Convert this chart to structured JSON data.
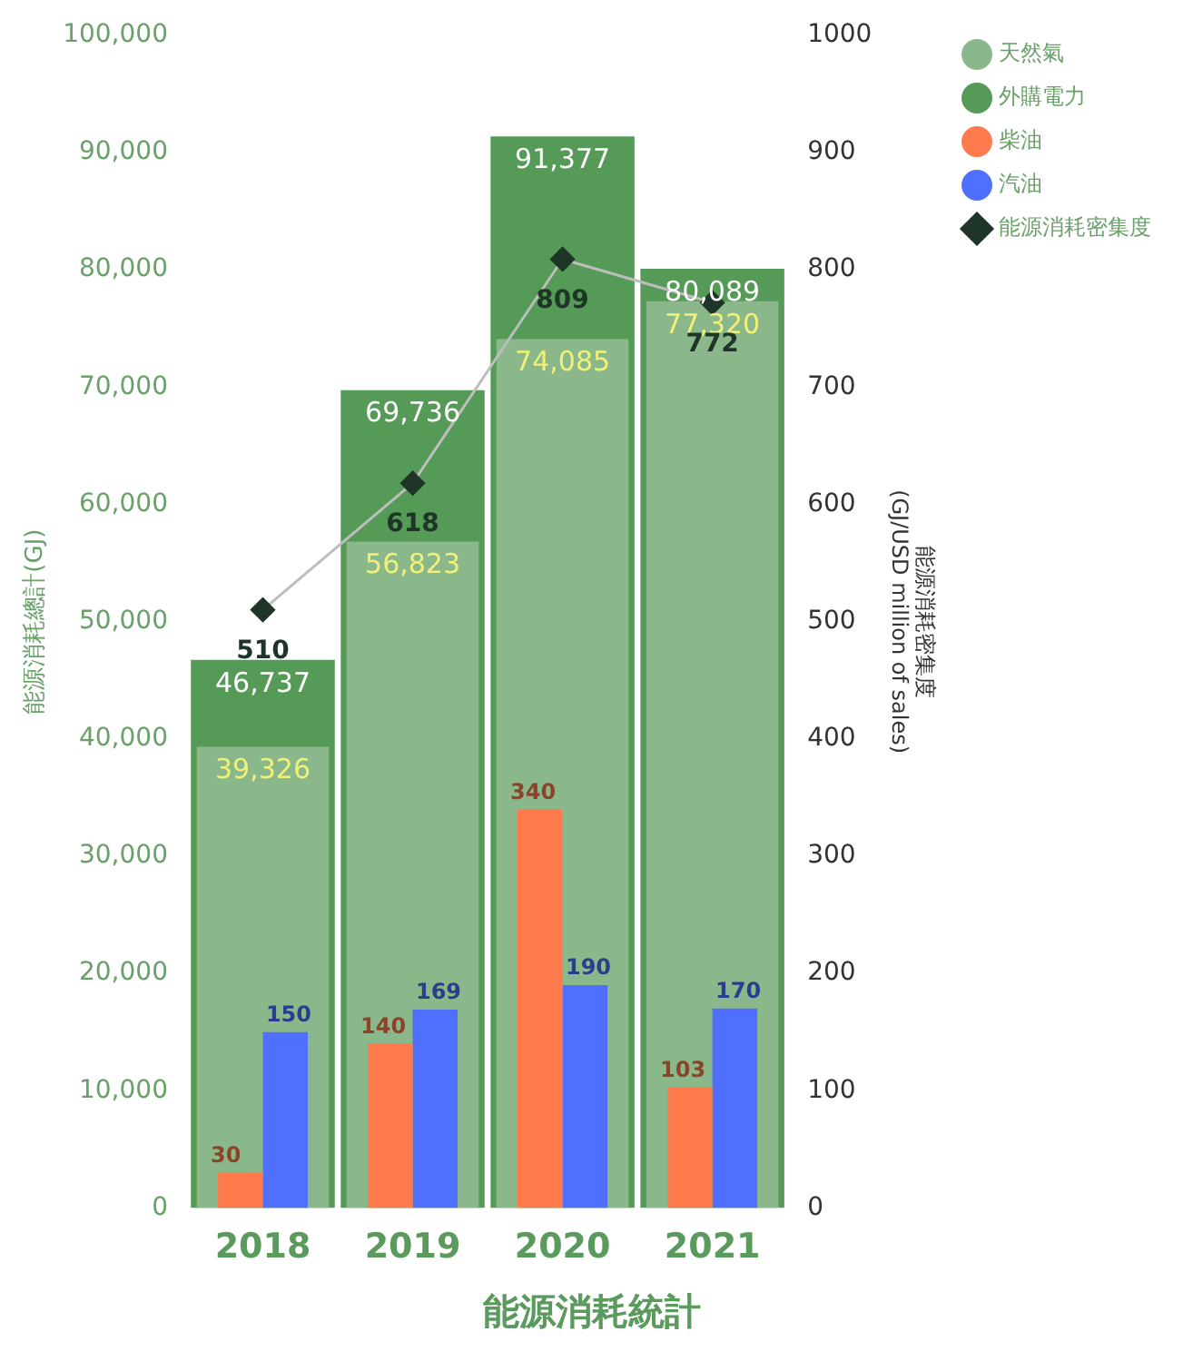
{
  "chart_data": {
    "type": "bar",
    "title": "能源消耗統計",
    "ylabel": "能源消耗總計(GJ)",
    "y2label": "能源消耗密集度\n(GJ/USD million of sales)",
    "categories": [
      "2018",
      "2019",
      "2020",
      "2021"
    ],
    "series": [
      {
        "name": "天然氣",
        "color": "#8ab88a",
        "values": [
          39326,
          56823,
          74085,
          77320
        ],
        "value_labels": [
          "39,326",
          "56,823",
          "74,085",
          "77,320"
        ]
      },
      {
        "name": "外購電力",
        "color": "#559a57",
        "values": [
          46737,
          69736,
          91377,
          80089
        ],
        "value_labels": [
          "46,737",
          "69,736",
          "91,377",
          "80,089"
        ]
      },
      {
        "name": "柴油",
        "color": "#ff7a4d",
        "axis": "y2",
        "values": [
          30,
          140,
          340,
          103
        ],
        "value_labels": [
          "30",
          "140",
          "340",
          "103"
        ]
      },
      {
        "name": "汽油",
        "color": "#4f6fff",
        "axis": "y2",
        "values": [
          150,
          169,
          190,
          170
        ],
        "value_labels": [
          "150",
          "169",
          "190",
          "170"
        ]
      },
      {
        "name": "能源消耗密集度",
        "type": "line",
        "color": "#1e3527",
        "axis": "y2",
        "marker": "diamond",
        "values": [
          510,
          618,
          809,
          772
        ],
        "value_labels": [
          "510",
          "618",
          "809",
          "772"
        ]
      }
    ],
    "ylim": [
      0,
      100000
    ],
    "yticks": [
      0,
      {
        "value": 10000,
        "label": "10,000"
      },
      {
        "value": 20000,
        "label": "20,000"
      },
      {
        "value": 30000,
        "label": "30,000"
      },
      {
        "value": 40000,
        "label": "40,000"
      },
      {
        "value": 50000,
        "label": "50,000"
      },
      {
        "value": 60000,
        "label": "60,000"
      },
      {
        "value": 70000,
        "label": "70,000"
      },
      {
        "value": 80000,
        "label": "80,000"
      },
      {
        "value": 90000,
        "label": "90,000"
      },
      {
        "value": 100000,
        "label": "100,000"
      }
    ],
    "y2lim": [
      0,
      1000
    ],
    "y2ticks": [
      0,
      100,
      200,
      300,
      400,
      500,
      600,
      700,
      800,
      900,
      1000
    ],
    "grid": false,
    "legend": "right"
  }
}
